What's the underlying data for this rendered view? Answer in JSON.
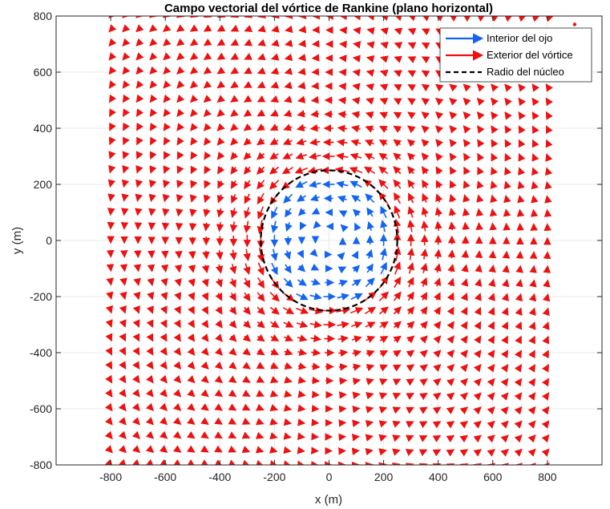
{
  "chart_data": {
    "type": "quiver",
    "title": "Campo vectorial del vórtice de Rankine (plano horizontal)",
    "xlabel": "x (m)",
    "ylabel": "y (m)",
    "xlim": [
      -1000,
      1000
    ],
    "ylim": [
      -800,
      800
    ],
    "xticks": [
      -800,
      -600,
      -400,
      -200,
      0,
      200,
      400,
      600,
      800
    ],
    "yticks": [
      -800,
      -600,
      -400,
      -200,
      0,
      200,
      400,
      600,
      800
    ],
    "x_tick_labels": [
      "-800",
      "-600",
      "-400",
      "-200",
      "0",
      "200",
      "400",
      "600",
      "800"
    ],
    "y_tick_labels": [
      "-800",
      "-600",
      "-400",
      "-200",
      "0",
      "200",
      "400",
      "600",
      "800"
    ],
    "grid": true,
    "grid_x": [
      -800,
      -600,
      -400,
      -200,
      0,
      200,
      400,
      600,
      800
    ],
    "grid_y": [
      -800,
      -600,
      -400,
      -200,
      0,
      200,
      400,
      600,
      800
    ],
    "grid_step": 50,
    "core_radius": 250,
    "rotation": "counterclockwise",
    "legend_position": "top-right",
    "series": [
      {
        "name": "Interior del ojo",
        "style": "arrow",
        "color": "#1464f4",
        "region": "r < 250"
      },
      {
        "name": "Exterior del vórtice",
        "style": "arrow",
        "color": "#ee1111",
        "region": "r >= 250"
      },
      {
        "name": "Radio del núcleo",
        "style": "dashed-circle",
        "color": "#000000",
        "radius": 250
      }
    ],
    "stray_point": {
      "x": 900,
      "y": 770,
      "color": "#ee1111"
    }
  }
}
